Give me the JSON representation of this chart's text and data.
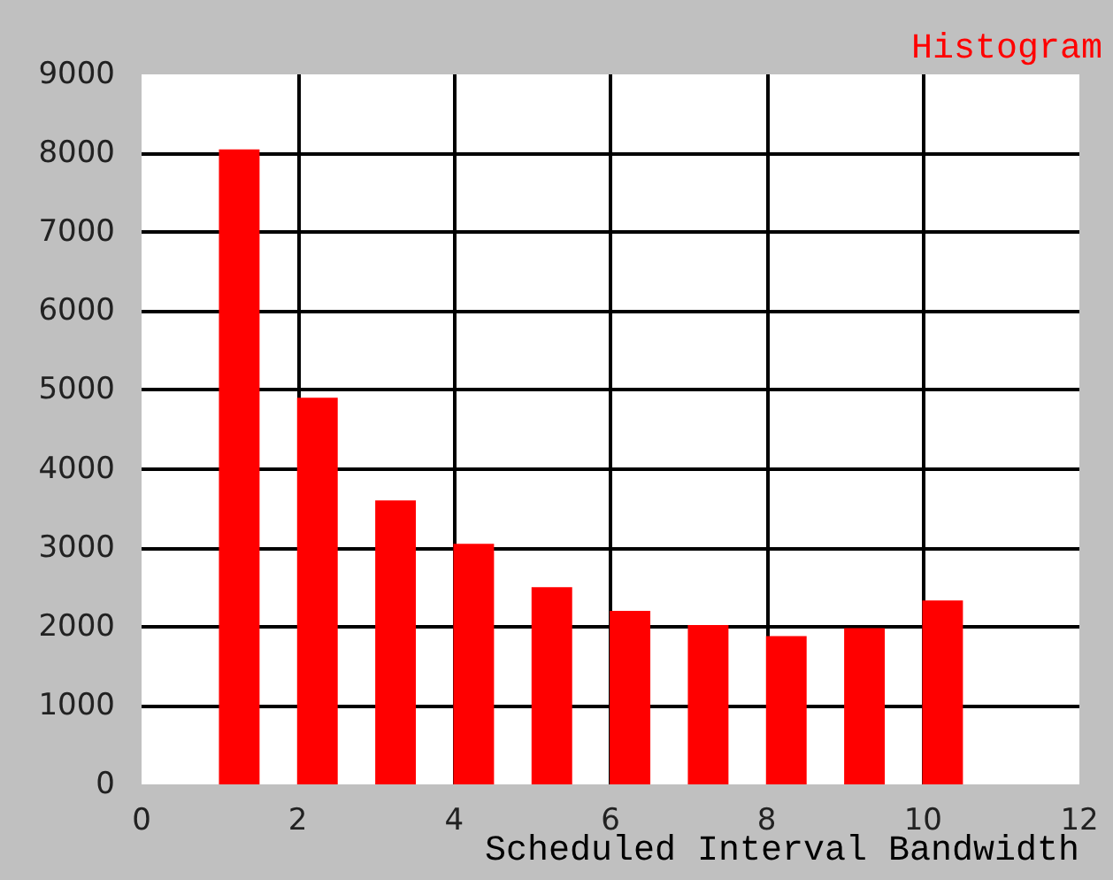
{
  "chart_data": {
    "type": "bar",
    "title": "Histogram",
    "xlabel": "Scheduled Interval Bandwidth",
    "x": [
      1.25,
      2.25,
      3.25,
      4.25,
      5.25,
      6.25,
      7.25,
      8.25,
      9.25,
      10.25
    ],
    "values": [
      8050,
      4900,
      3600,
      3050,
      2500,
      2200,
      2020,
      1880,
      1980,
      2330
    ],
    "color": "#ff0000",
    "xlim": [
      0,
      12
    ],
    "xticks": [
      0,
      2,
      4,
      6,
      8,
      10,
      12
    ],
    "ylim": [
      0,
      9000
    ],
    "yticks": [
      0,
      1000,
      2000,
      3000,
      4000,
      5000,
      6000,
      7000,
      8000,
      9000
    ],
    "grid": true
  }
}
